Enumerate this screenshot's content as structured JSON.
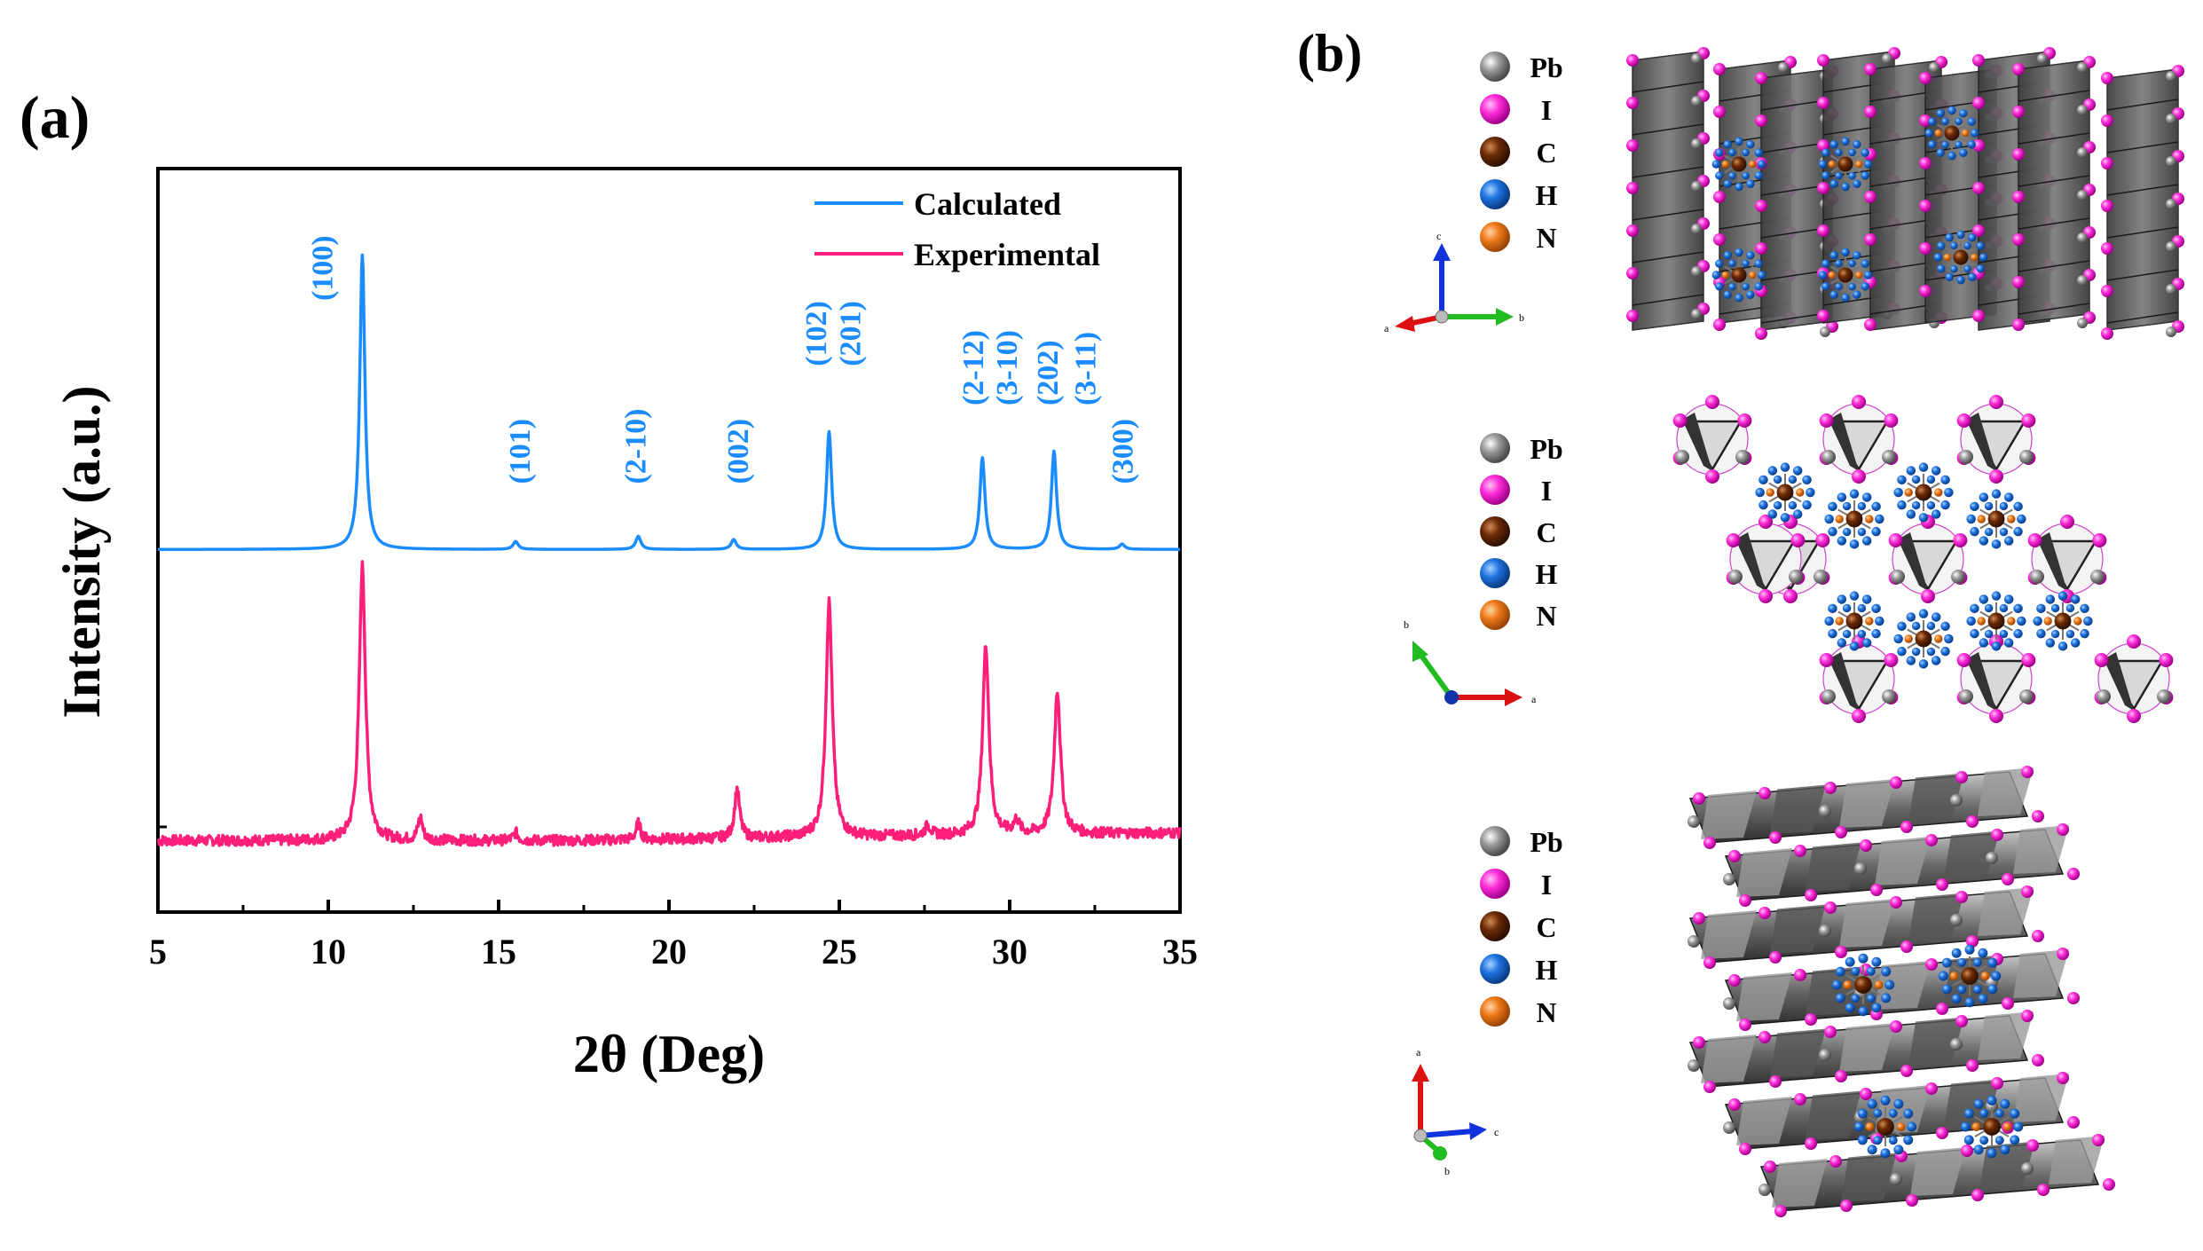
{
  "panels": {
    "a_label": "(a)",
    "b_label": "(b)"
  },
  "chart_data": {
    "type": "line",
    "title": "",
    "xlabel": "2θ (Deg)",
    "ylabel": "Intensity (a.u.)",
    "xlim": [
      5,
      35
    ],
    "ylim": [
      0,
      1
    ],
    "x_ticks": [
      5,
      10,
      15,
      20,
      25,
      30,
      35
    ],
    "x_tick_labels": [
      "5",
      "10",
      "15",
      "20",
      "25",
      "30",
      "35"
    ],
    "grid": false,
    "legend_position": "top-right",
    "series": [
      {
        "name": "Calculated",
        "color": "#1a8cff",
        "offset": 0.5,
        "baseline_noise": 0.0,
        "peaks": [
          {
            "x": 11.0,
            "h": 0.45,
            "w": 0.09
          },
          {
            "x": 15.5,
            "h": 0.012,
            "w": 0.09
          },
          {
            "x": 19.1,
            "h": 0.02,
            "w": 0.09
          },
          {
            "x": 21.9,
            "h": 0.015,
            "w": 0.09
          },
          {
            "x": 24.7,
            "h": 0.18,
            "w": 0.09
          },
          {
            "x": 29.2,
            "h": 0.14,
            "w": 0.09
          },
          {
            "x": 31.3,
            "h": 0.15,
            "w": 0.09
          },
          {
            "x": 33.3,
            "h": 0.008,
            "w": 0.09
          }
        ],
        "values_x": [
          5,
          11.0,
          15.5,
          19.1,
          21.9,
          24.7,
          29.2,
          31.3,
          33.3,
          35
        ],
        "values_y": [
          0.5,
          0.95,
          0.512,
          0.52,
          0.515,
          0.68,
          0.64,
          0.65,
          0.508,
          0.5
        ]
      },
      {
        "name": "Experimental",
        "color": "#ff1f7a",
        "offset": 0.055,
        "baseline_noise": 0.008,
        "peaks": [
          {
            "x": 11.0,
            "h": 0.42,
            "w": 0.11
          },
          {
            "x": 12.7,
            "h": 0.035,
            "w": 0.08
          },
          {
            "x": 15.5,
            "h": 0.012,
            "w": 0.08
          },
          {
            "x": 19.1,
            "h": 0.025,
            "w": 0.08
          },
          {
            "x": 22.0,
            "h": 0.075,
            "w": 0.09
          },
          {
            "x": 24.7,
            "h": 0.36,
            "w": 0.11
          },
          {
            "x": 27.6,
            "h": 0.015,
            "w": 0.1
          },
          {
            "x": 29.3,
            "h": 0.29,
            "w": 0.11
          },
          {
            "x": 30.2,
            "h": 0.02,
            "w": 0.1
          },
          {
            "x": 31.4,
            "h": 0.22,
            "w": 0.11
          }
        ],
        "values_x": [
          5,
          11.0,
          12.7,
          15.5,
          19.1,
          22.0,
          24.7,
          29.3,
          31.4,
          35
        ],
        "values_y": [
          0.055,
          0.475,
          0.09,
          0.067,
          0.08,
          0.13,
          0.415,
          0.345,
          0.275,
          0.055
        ]
      }
    ],
    "annotations": [
      {
        "text": "(100)",
        "x": 9.8,
        "y": 0.88
      },
      {
        "text": "(101)",
        "x": 15.6,
        "y": 0.6
      },
      {
        "text": "(2-10)",
        "x": 19.0,
        "y": 0.6
      },
      {
        "text": "(002)",
        "x": 22.0,
        "y": 0.6
      },
      {
        "text": "(102)",
        "x": 24.3,
        "y": 0.78
      },
      {
        "text": "(201)",
        "x": 25.3,
        "y": 0.78
      },
      {
        "text": "(2-12)",
        "x": 28.9,
        "y": 0.72
      },
      {
        "text": "(3-10)",
        "x": 29.9,
        "y": 0.72
      },
      {
        "text": "(202)",
        "x": 31.1,
        "y": 0.72
      },
      {
        "text": "(3-11)",
        "x": 32.2,
        "y": 0.72
      },
      {
        "text": "(300)",
        "x": 33.3,
        "y": 0.6
      }
    ]
  },
  "crystal_views": [
    {
      "name": "view-1",
      "legend": [
        "Pb",
        "I",
        "C",
        "H",
        "N"
      ],
      "axes": {
        "up": "c",
        "right": "b",
        "left": "a"
      }
    },
    {
      "name": "view-2",
      "legend": [
        "Pb",
        "I",
        "C",
        "H",
        "N"
      ],
      "axes": {
        "up": "b",
        "right": "a"
      }
    },
    {
      "name": "view-3",
      "legend": [
        "Pb",
        "I",
        "C",
        "H",
        "N"
      ],
      "axes": {
        "up": "a",
        "right": "c",
        "down": "b"
      }
    }
  ],
  "atom_colors": {
    "Pb": "#8c8c8c",
    "I": "#ff33dd",
    "C": "#6b2a05",
    "H": "#1f73e0",
    "N": "#ee7a1a"
  }
}
